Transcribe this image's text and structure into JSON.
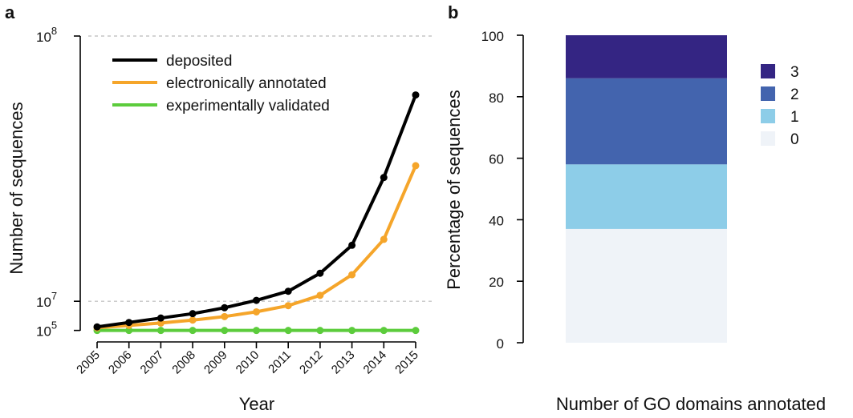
{
  "panels": {
    "a_label": "a",
    "b_label": "b"
  },
  "chart_data": [
    {
      "type": "line",
      "xlabel": "Year",
      "ylabel": "Number of sequences",
      "x": [
        2005,
        2006,
        2007,
        2008,
        2009,
        2010,
        2011,
        2012,
        2013,
        2014,
        2015
      ],
      "x_tick_labels": [
        "2005",
        "2006",
        "2007",
        "2008",
        "2009",
        "2010",
        "2011",
        "2012",
        "2013",
        "2014",
        "2015"
      ],
      "y_ticks": [
        {
          "base": "10",
          "exp": "5",
          "value": 100000
        },
        {
          "base": "10",
          "exp": "7",
          "value": 10000000
        },
        {
          "base": "10",
          "exp": "8",
          "value": 100000000
        }
      ],
      "ylim": [
        0,
        100000000
      ],
      "y_scale": "linear",
      "grid": "dashed horizontal lines at 10^7 and 10^8",
      "legend_position": "top-left",
      "series": [
        {
          "name": "deposited",
          "color": "#000000",
          "values": [
            1300000,
            2800000,
            4300000,
            5800000,
            7800000,
            10300000,
            13400000,
            19500000,
            29000000,
            52000000,
            80000000
          ]
        },
        {
          "name": "electronically annotated",
          "color": "#f5a52a",
          "values": [
            1000000,
            1800000,
            2600000,
            3600000,
            4800000,
            6400000,
            8500000,
            12000000,
            19000000,
            31000000,
            56000000
          ]
        },
        {
          "name": "experimentally validated",
          "color": "#5ccc3c",
          "values": [
            100000,
            100000,
            100000,
            100000,
            100000,
            100000,
            100000,
            100000,
            100000,
            100000,
            100000
          ]
        }
      ]
    },
    {
      "type": "bar",
      "stacked": true,
      "xlabel": "Number of GO domains annotated",
      "ylabel": "Percentage of sequences",
      "ylim": [
        0,
        100
      ],
      "y_ticks": [
        "0",
        "20",
        "40",
        "60",
        "80",
        "100"
      ],
      "legend_position": "right",
      "series": [
        {
          "name": "0",
          "color": "#eff3f8",
          "value": 37
        },
        {
          "name": "1",
          "color": "#8dcde8",
          "value": 21
        },
        {
          "name": "2",
          "color": "#4364ae",
          "value": 28
        },
        {
          "name": "3",
          "color": "#342583",
          "value": 14
        }
      ],
      "legend_order": [
        "3",
        "2",
        "1",
        "0"
      ]
    }
  ]
}
